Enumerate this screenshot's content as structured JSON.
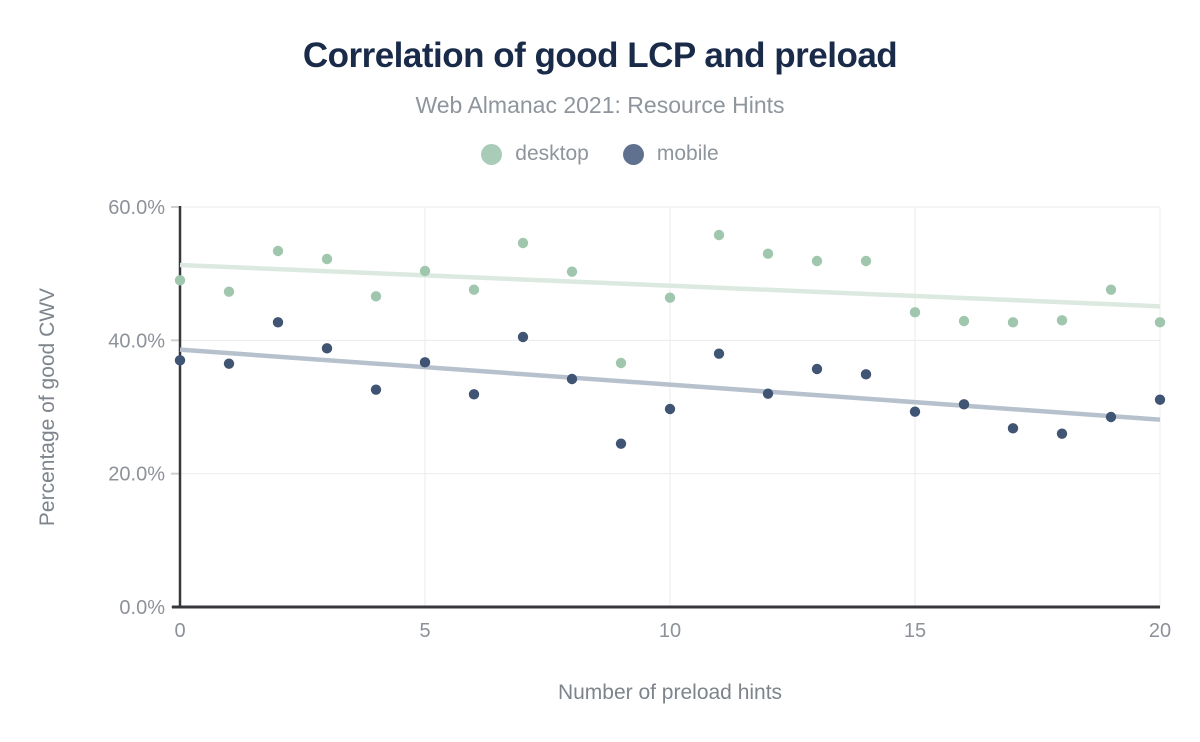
{
  "header": {
    "title": "Correlation of good LCP and preload",
    "subtitle": "Web Almanac 2021: Resource Hints"
  },
  "legend": {
    "items": [
      {
        "label": "desktop",
        "swatch_color": "#a8ccb8"
      },
      {
        "label": "mobile",
        "swatch_color": "#607190"
      }
    ]
  },
  "palette": {
    "title_color": "#1a2b49",
    "subtitle_color": "#8e959c",
    "legend_text_color": "#8e959c",
    "axis_title_color": "#7d848b",
    "tick_color": "#8d9299",
    "axis_line_color": "#37383c",
    "gridline_color": "#ebebeb",
    "tick_mark_color": "#cfcfcf"
  },
  "chart_data": {
    "type": "scatter",
    "title": "Correlation of good LCP and preload",
    "subtitle": "Web Almanac 2021: Resource Hints",
    "xlabel": "Number of preload hints",
    "ylabel": "Percentage of good CWV",
    "xlim": [
      0,
      20
    ],
    "ylim": [
      0,
      60
    ],
    "grid": true,
    "legend_position": "top",
    "x_ticks": [
      {
        "value": 0,
        "label": "0"
      },
      {
        "value": 5,
        "label": "5"
      },
      {
        "value": 10,
        "label": "10"
      },
      {
        "value": 15,
        "label": "15"
      },
      {
        "value": 20,
        "label": "20"
      }
    ],
    "y_ticks": [
      {
        "value": 0,
        "label": "0.0%"
      },
      {
        "value": 20,
        "label": "20.0%"
      },
      {
        "value": 40,
        "label": "40.0%"
      },
      {
        "value": 60,
        "label": "60.0%"
      }
    ],
    "x": [
      0,
      1,
      2,
      3,
      4,
      5,
      6,
      7,
      8,
      9,
      10,
      11,
      12,
      13,
      14,
      15,
      16,
      17,
      18,
      19,
      20
    ],
    "series": [
      {
        "name": "desktop",
        "point_color": "#a0c7ae",
        "trend_color": "#dce9e1",
        "values_pct": [
          49.0,
          47.3,
          53.4,
          52.2,
          46.6,
          50.4,
          47.6,
          54.6,
          50.3,
          36.6,
          46.4,
          55.8,
          53.0,
          51.9,
          51.9,
          44.2,
          42.9,
          42.7,
          43.0,
          47.6,
          42.7
        ],
        "trendline_pct": {
          "x0": 0,
          "y0": 51.3,
          "x1": 20,
          "y1": 45.1
        }
      },
      {
        "name": "mobile",
        "point_color": "#405473",
        "trend_color": "#b7c1ce",
        "values_pct": [
          37.0,
          36.5,
          42.7,
          38.8,
          32.6,
          36.7,
          31.9,
          40.5,
          34.2,
          24.5,
          29.7,
          38.0,
          32.0,
          35.7,
          34.9,
          29.3,
          30.4,
          26.8,
          26.0,
          28.5,
          31.1
        ],
        "trendline_pct": {
          "x0": 0,
          "y0": 38.6,
          "x1": 20,
          "y1": 28.1
        }
      }
    ]
  }
}
